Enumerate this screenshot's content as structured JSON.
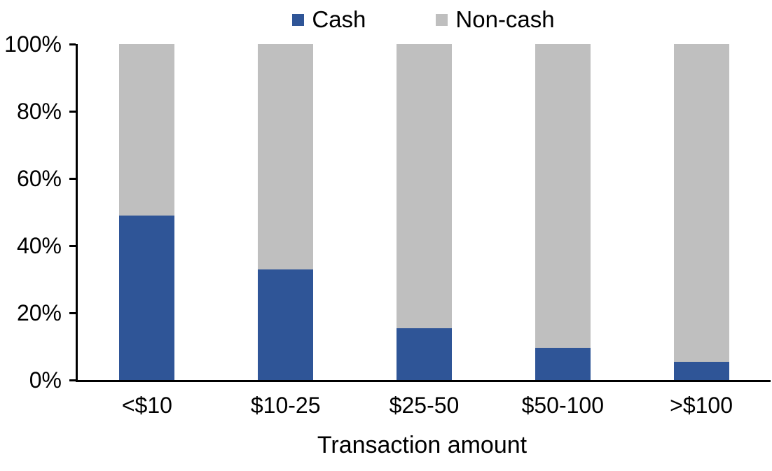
{
  "chart_data": {
    "type": "bar",
    "stacked": true,
    "title": "",
    "xlabel": "Transaction amount",
    "ylabel": "",
    "ylim": [
      0,
      100
    ],
    "yticks": [
      "0%",
      "20%",
      "40%",
      "60%",
      "80%",
      "100%"
    ],
    "grid": false,
    "legend_position": "top-center",
    "categories": [
      "<$10",
      "$10-25",
      "$25-50",
      "$50-100",
      ">$100"
    ],
    "series": [
      {
        "name": "Cash",
        "color": "#2F5597",
        "values": [
          49,
          33,
          15.5,
          9.5,
          5.5
        ]
      },
      {
        "name": "Non-cash",
        "color": "#BFBFBF",
        "values": [
          51,
          67,
          84.5,
          90.5,
          94.5
        ]
      }
    ]
  },
  "colors": {
    "cash": "#2F5597",
    "noncash": "#BFBFBF",
    "axis": "#000000",
    "background": "#FFFFFF",
    "text": "#000000"
  }
}
